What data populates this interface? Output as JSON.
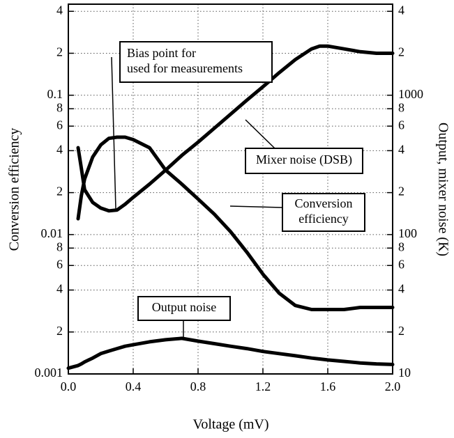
{
  "chart_data": {
    "type": "line",
    "xlabel": "Voltage (mV)",
    "ylabel": "Conversion efficiency",
    "y2label": "Output, mixer noise (K)",
    "log_y": true,
    "grid": true,
    "xlim": [
      0,
      2
    ],
    "xticks": [
      {
        "value": 0,
        "label": "0.0"
      },
      0.4,
      0.8,
      1.2,
      1.6,
      {
        "value": 2,
        "label": "2.0"
      }
    ],
    "ylim": [
      0.001,
      0.45
    ],
    "yticks": [
      0.001,
      {
        "value": 0.002,
        "label": "2"
      },
      {
        "value": 0.004,
        "label": "4"
      },
      {
        "value": 0.006,
        "label": "6"
      },
      {
        "value": 0.008,
        "label": "8"
      },
      0.01,
      {
        "value": 0.02,
        "label": "2"
      },
      {
        "value": 0.04,
        "label": "4"
      },
      {
        "value": 0.06,
        "label": "6"
      },
      {
        "value": 0.08,
        "label": "8"
      },
      0.1,
      {
        "value": 0.2,
        "label": "2"
      },
      {
        "value": 0.4,
        "label": "4"
      }
    ],
    "y2lim": [
      10,
      4500
    ],
    "y2ticks": [
      10,
      {
        "value": 20,
        "label": "2"
      },
      {
        "value": 40,
        "label": "4"
      },
      {
        "value": 60,
        "label": "6"
      },
      {
        "value": 80,
        "label": "8"
      },
      100,
      {
        "value": 200,
        "label": "2"
      },
      {
        "value": 400,
        "label": "4"
      },
      {
        "value": 600,
        "label": "6"
      },
      {
        "value": 800,
        "label": "8"
      },
      1000,
      {
        "value": 2000,
        "label": "2"
      },
      {
        "value": 4000,
        "label": "4"
      }
    ],
    "x": [
      0,
      0.06,
      0.08,
      0.1,
      0.15,
      0.2,
      0.25,
      0.3,
      0.35,
      0.4,
      0.5,
      0.6,
      0.7,
      0.8,
      0.9,
      1.0,
      1.1,
      1.2,
      1.3,
      1.4,
      1.5,
      1.55,
      1.6,
      1.7,
      1.8,
      1.9,
      2.0
    ],
    "series": [
      {
        "name": "Conversion efficiency",
        "color": "#000000",
        "axis": "y",
        "values": [
          null,
          0.013,
          0.019,
          0.025,
          0.036,
          0.044,
          0.049,
          0.05,
          0.05,
          0.048,
          0.042,
          0.029,
          0.023,
          0.018,
          0.014,
          0.0105,
          0.0075,
          0.0052,
          0.0038,
          0.0031,
          0.0029,
          0.0029,
          0.0029,
          0.0029,
          0.003,
          0.003,
          0.003
        ]
      },
      {
        "name": "Mixer noise (DSB)",
        "color": "#000000",
        "axis": "y2",
        "values": [
          null,
          420,
          300,
          210,
          170,
          155,
          148,
          150,
          165,
          185,
          230,
          290,
          370,
          460,
          580,
          730,
          920,
          1150,
          1450,
          1800,
          2150,
          2250,
          2250,
          2150,
          2050,
          2000,
          2000
        ]
      },
      {
        "name": "Output noise",
        "color": "#000000",
        "axis": "y2",
        "values": [
          11,
          11.5,
          11.8,
          12.2,
          13,
          14,
          14.6,
          15.2,
          15.8,
          16.2,
          17,
          17.6,
          18,
          17.2,
          16.5,
          15.8,
          15.2,
          14.5,
          14,
          13.5,
          13,
          12.8,
          12.6,
          12.3,
          12,
          11.8,
          11.7
        ]
      }
    ],
    "annotations": [
      {
        "lines": [
          "Bias point for",
          "used for measurements"
        ]
      },
      {
        "lines": [
          "Mixer noise (DSB)"
        ]
      },
      {
        "lines": [
          "Conversion",
          "efficiency"
        ]
      },
      {
        "lines": [
          "Output noise"
        ]
      }
    ]
  }
}
